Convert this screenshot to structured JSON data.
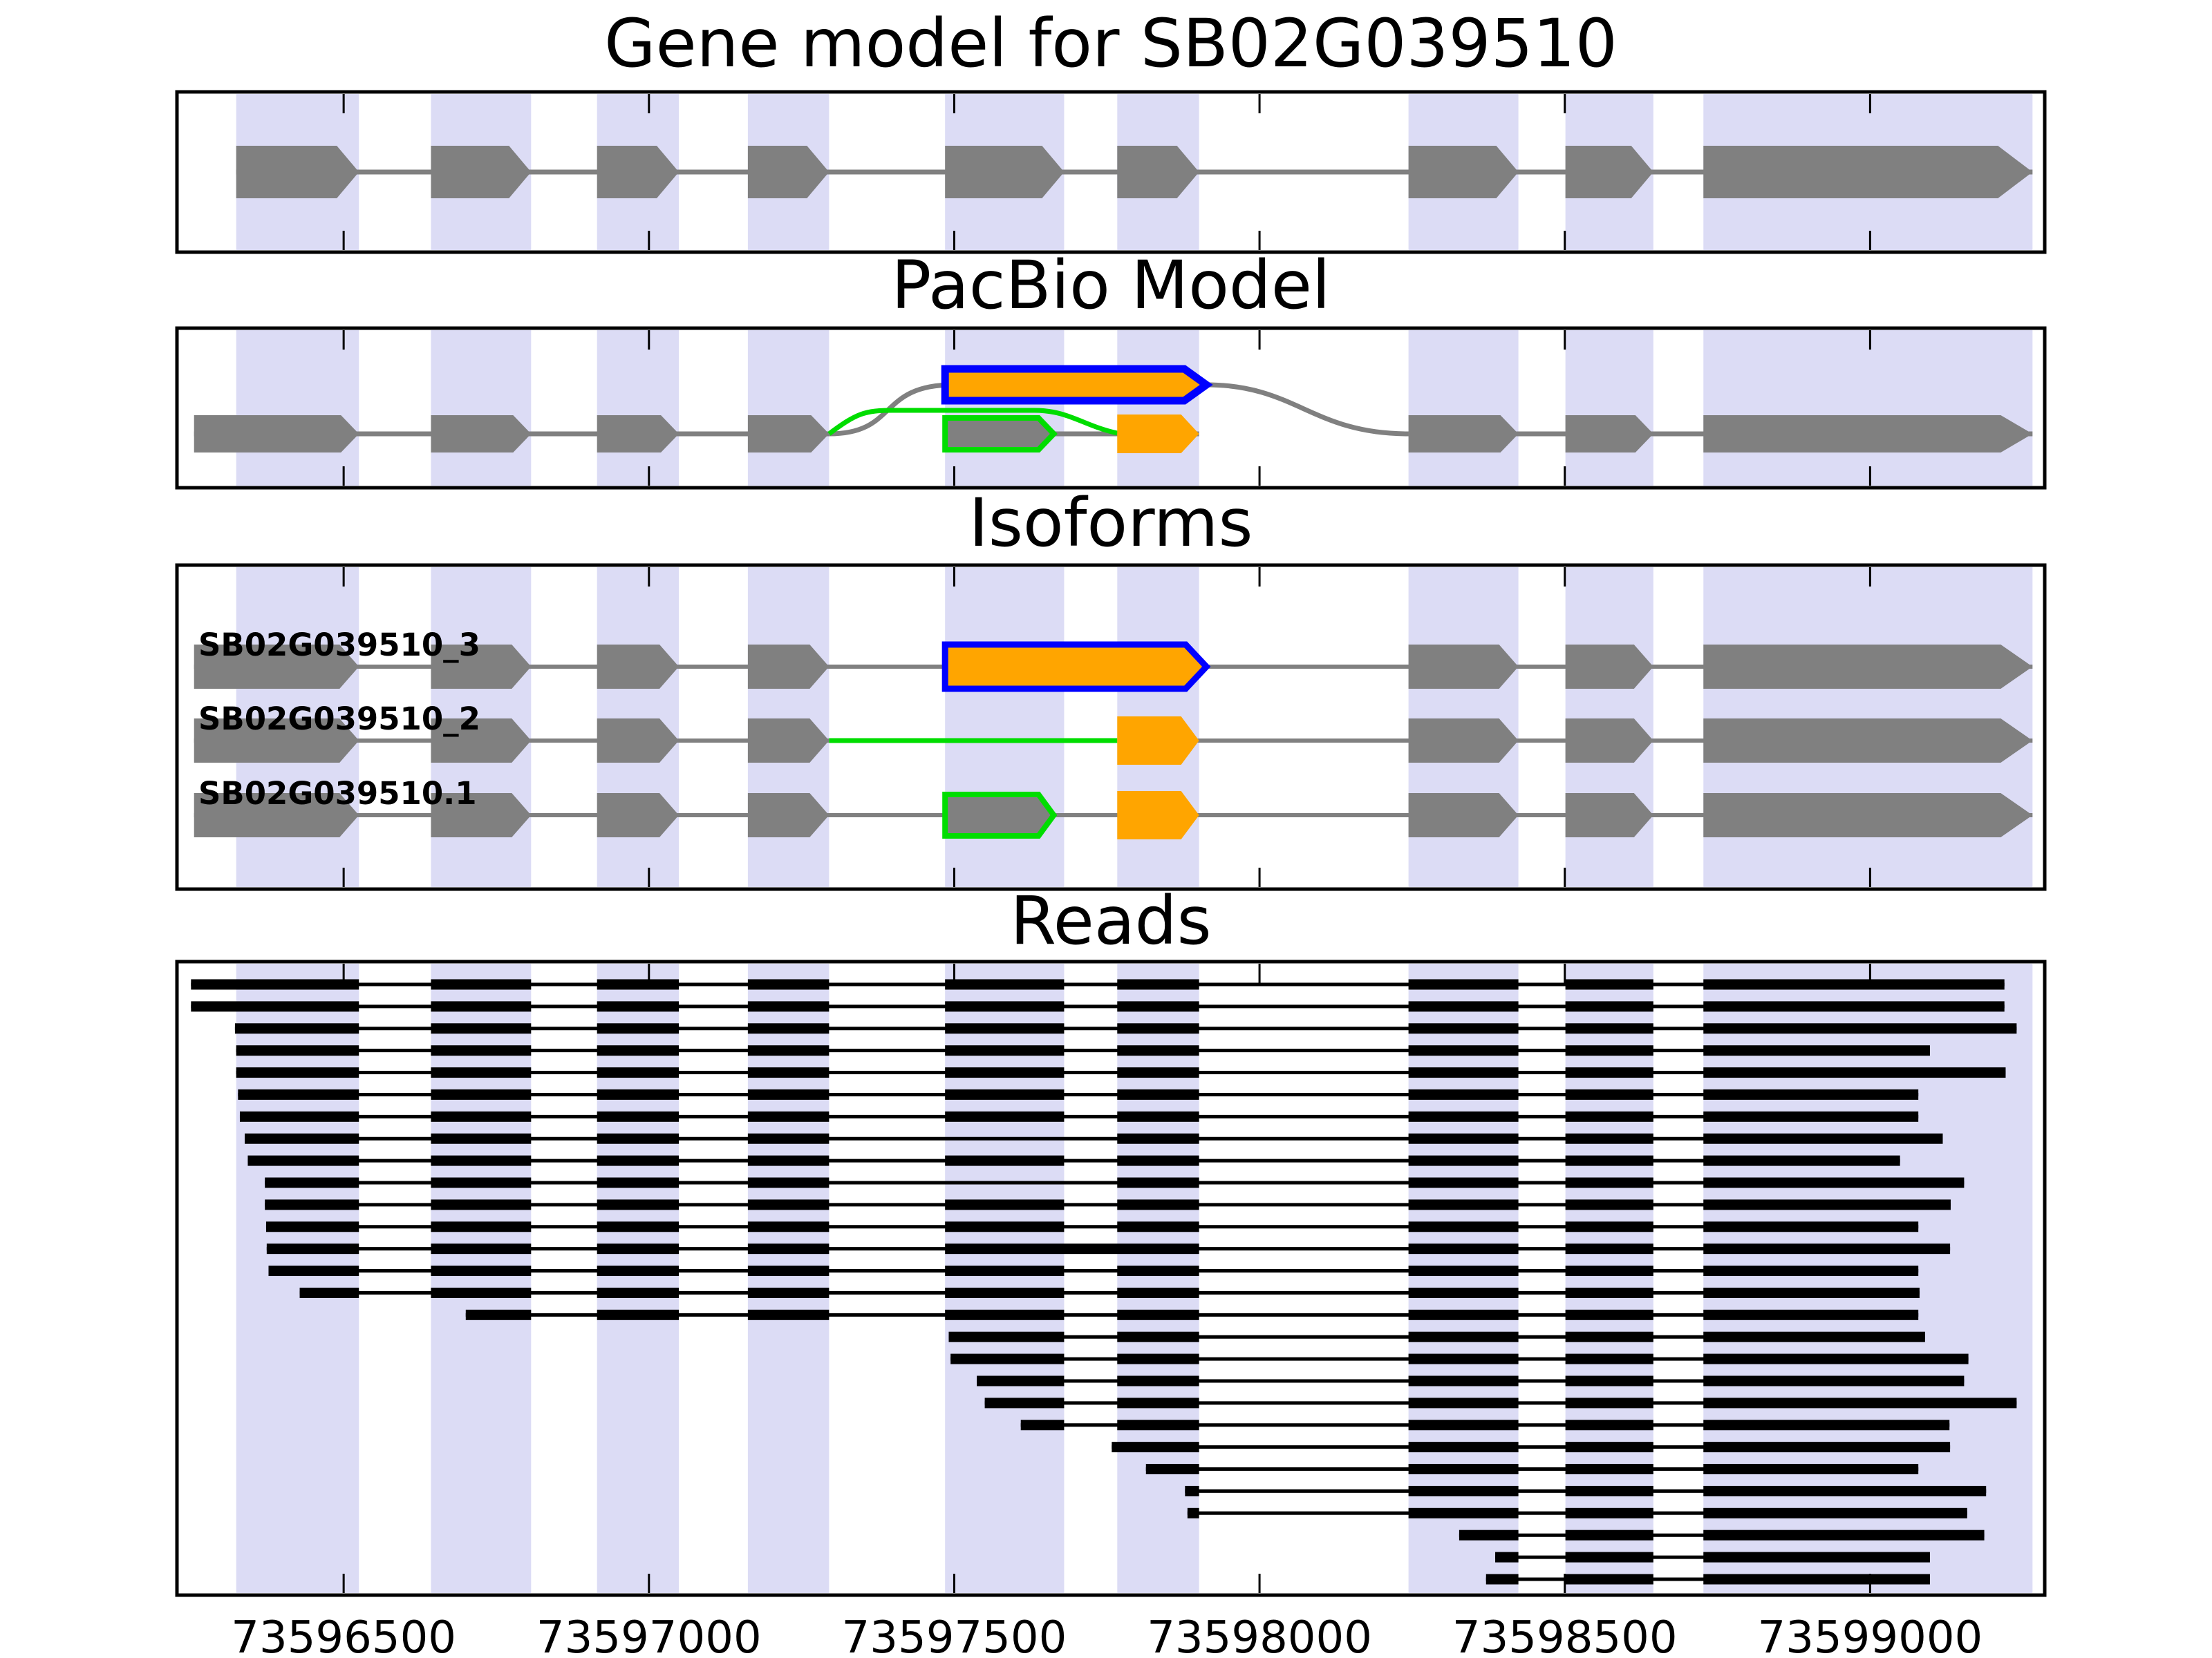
{
  "colors": {
    "background": "#ffffff",
    "band": "#dcdcf5",
    "exon_gray": "#808080",
    "line_gray": "#808080",
    "orange": "#ffa500",
    "blue": "#0000ff",
    "green": "#00dd00",
    "read": "#000000",
    "text": "#000000",
    "frame": "#000000"
  },
  "chart_data": {
    "type": "gene-model-read-browser",
    "axis": {
      "xmin": 73596227,
      "xmax": 73599286,
      "ticks": [
        73596500,
        73597000,
        73597500,
        73598000,
        73598500,
        73599000
      ],
      "tick_labels": [
        "73596500",
        "73597000",
        "73597500",
        "73598000",
        "73598500",
        "73599000"
      ]
    },
    "exons": [
      [
        73596324,
        73596525
      ],
      [
        73596643,
        73596807
      ],
      [
        73596915,
        73597049
      ],
      [
        73597162,
        73597295
      ],
      [
        73597485,
        73597680
      ],
      [
        73597767,
        73597901
      ],
      [
        73598244,
        73598424
      ],
      [
        73598501,
        73598645
      ],
      [
        73598727,
        73599266
      ]
    ],
    "extended_exon1": [
      73596255,
      73596525
    ],
    "panels": {
      "gene_model": {
        "title": "Gene model for SB02G039510"
      },
      "pacbio": {
        "title": "PacBio Model",
        "gray_exon_indices": [
          0,
          1,
          2,
          3,
          6,
          7,
          8
        ],
        "short_exon5": [
          73597485,
          73597663
        ],
        "orange_exon6": [
          73597767,
          73597901
        ],
        "merged_exon": [
          73597485,
          73597913
        ],
        "gray_skip_arc": [
          73597295,
          73598244
        ],
        "green_skip_arc": [
          73597295,
          73597767
        ]
      },
      "isoforms": {
        "title": "Isoforms",
        "rows": [
          {
            "label": "SB02G039510_3",
            "type": "retained_intron",
            "merged_exon": [
              73597485,
              73597913
            ]
          },
          {
            "label": "SB02G039510_2",
            "type": "exon5_skipped",
            "orange_exon6": [
              73597767,
              73597901
            ]
          },
          {
            "label": "SB02G039510.1",
            "type": "reference",
            "short_exon5": [
              73597485,
              73597663
            ],
            "orange_exon6": [
              73597767,
              73597901
            ]
          }
        ]
      },
      "reads": {
        "title": "Reads",
        "rows": [
          {
            "start": 73596250,
            "end": 73599220,
            "splice": "full"
          },
          {
            "start": 73596250,
            "end": 73599220,
            "splice": "full"
          },
          {
            "start": 73596322,
            "end": 73599240,
            "splice": "full"
          },
          {
            "start": 73596324,
            "end": 73599098,
            "splice": "full"
          },
          {
            "start": 73596324,
            "end": 73599222,
            "splice": "full"
          },
          {
            "start": 73596327,
            "end": 73599079,
            "splice": "full"
          },
          {
            "start": 73596330,
            "end": 73599079,
            "splice": "full"
          },
          {
            "start": 73596338,
            "end": 73599119,
            "splice": "skip_exon5"
          },
          {
            "start": 73596343,
            "end": 73599049,
            "splice": "full"
          },
          {
            "start": 73596371,
            "end": 73599154,
            "splice": "skip_exon5"
          },
          {
            "start": 73596371,
            "end": 73599132,
            "splice": "full"
          },
          {
            "start": 73596373,
            "end": 73599079,
            "splice": "full"
          },
          {
            "start": 73596374,
            "end": 73599131,
            "splice": "retained_intron"
          },
          {
            "start": 73596377,
            "end": 73599079,
            "splice": "full"
          },
          {
            "start": 73596428,
            "end": 73599081,
            "splice": "full"
          },
          {
            "start": 73596700,
            "end": 73599079,
            "splice": "full"
          },
          {
            "start": 73597491,
            "end": 73599090,
            "splice": "full"
          },
          {
            "start": 73597494,
            "end": 73599161,
            "splice": "full"
          },
          {
            "start": 73597537,
            "end": 73599154,
            "splice": "full"
          },
          {
            "start": 73597550,
            "end": 73599240,
            "splice": "full"
          },
          {
            "start": 73597609,
            "end": 73599130,
            "splice": "full"
          },
          {
            "start": 73597758,
            "end": 73599131,
            "splice": "full"
          },
          {
            "start": 73597814,
            "end": 73599079,
            "splice": "full"
          },
          {
            "start": 73597878,
            "end": 73599190,
            "splice": "full"
          },
          {
            "start": 73597882,
            "end": 73599159,
            "splice": "full"
          },
          {
            "start": 73598327,
            "end": 73599187,
            "splice": "full"
          },
          {
            "start": 73598386,
            "end": 73599098,
            "splice": "full"
          },
          {
            "start": 73598371,
            "end": 73599098,
            "splice": "full"
          }
        ]
      }
    }
  }
}
